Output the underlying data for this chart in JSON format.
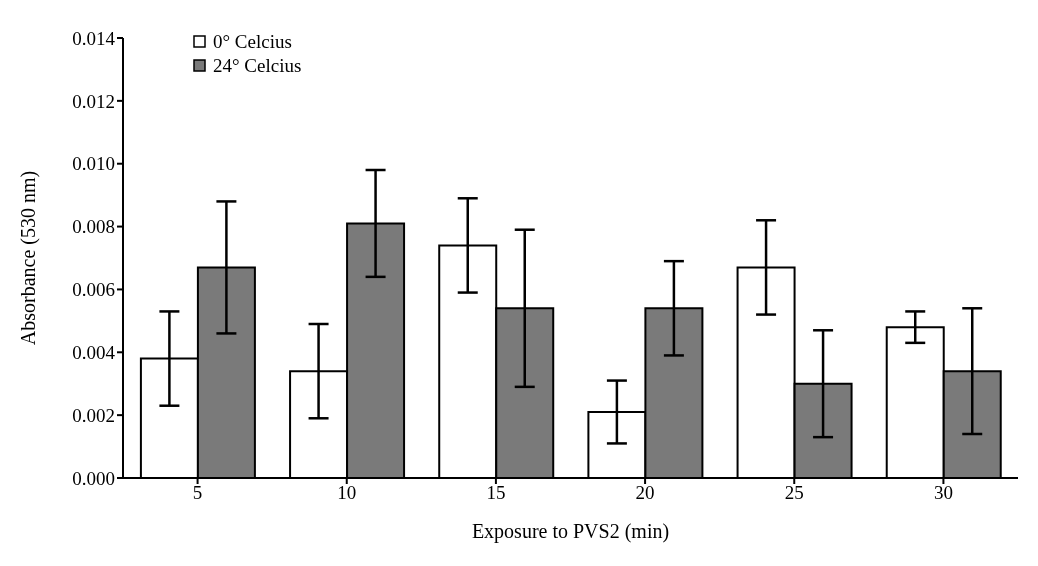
{
  "chart_data": {
    "type": "bar",
    "xlabel": "Exposure to PVS2 (min)",
    "ylabel": "Absorbance (530 nm)",
    "categories": [
      "5",
      "10",
      "15",
      "20",
      "25",
      "30"
    ],
    "series": [
      {
        "name": "0° Celcius",
        "color": "#ffffff",
        "values": [
          0.0038,
          0.0034,
          0.0074,
          0.0021,
          0.0067,
          0.0048
        ],
        "errors": [
          0.0015,
          0.0015,
          0.0015,
          0.001,
          0.0015,
          0.0005
        ]
      },
      {
        "name": "24° Celcius",
        "color": "#7a7a7a",
        "values": [
          0.0067,
          0.0081,
          0.0054,
          0.0054,
          0.003,
          0.0034
        ],
        "errors": [
          0.0021,
          0.0017,
          0.0025,
          0.0015,
          0.0017,
          0.002
        ]
      }
    ],
    "ylim": [
      0,
      0.014
    ],
    "yticks": [
      {
        "value": 0,
        "label": "0.000"
      },
      {
        "value": 0.002,
        "label": "0.002"
      },
      {
        "value": 0.004,
        "label": "0.004"
      },
      {
        "value": 0.006,
        "label": "0.006"
      },
      {
        "value": 0.008,
        "label": "0.008"
      },
      {
        "value": 0.01,
        "label": "0.010"
      },
      {
        "value": 0.012,
        "label": "0.012"
      },
      {
        "value": 0.014,
        "label": "0.014"
      }
    ],
    "grid": false,
    "legend": "top left"
  }
}
